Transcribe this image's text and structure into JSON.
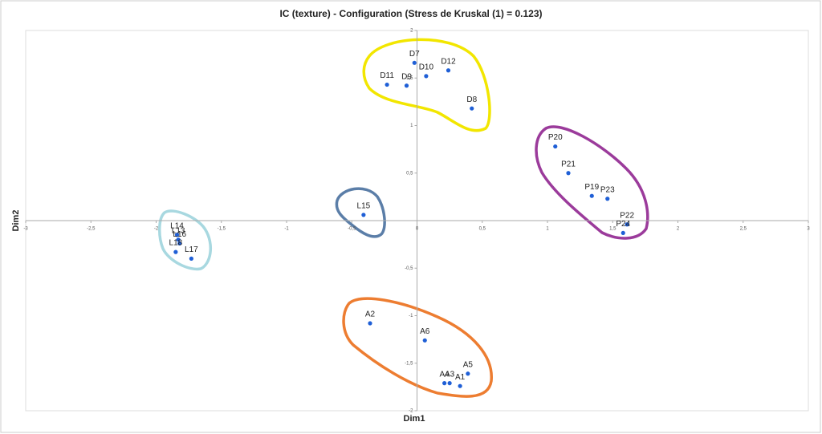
{
  "chart_data": {
    "type": "scatter",
    "title": "IC (texture) - Configuration (Stress de Kruskal (1) = 0.123)",
    "x_label": "Dim1",
    "y_label": "Dim2",
    "point_labels": [
      "D7",
      "D10",
      "D12",
      "D11",
      "D9",
      "D8",
      "P20",
      "P21",
      "P19",
      "P23",
      "P22",
      "P24",
      "L15",
      "L14",
      "L13",
      "L16",
      "L18",
      "L17",
      "A2",
      "A6",
      "A5",
      "A4",
      "A3",
      "A1"
    ],
    "x": [
      -0.02,
      0.07,
      0.24,
      -0.23,
      -0.08,
      0.42,
      1.06,
      1.16,
      1.34,
      1.46,
      1.61,
      1.58,
      -0.41,
      -1.84,
      -1.83,
      -1.82,
      -1.85,
      -1.73,
      -0.36,
      0.06,
      0.39,
      0.21,
      0.25,
      0.33
    ],
    "values": [
      1.66,
      1.52,
      1.58,
      1.43,
      1.42,
      1.18,
      0.78,
      0.5,
      0.26,
      0.23,
      -0.04,
      -0.13,
      0.06,
      -0.15,
      -0.2,
      -0.24,
      -0.33,
      -0.4,
      -1.08,
      -1.26,
      -1.61,
      -1.71,
      -1.71,
      -1.74
    ],
    "color": "#1f5fd6",
    "xlim": [
      -3,
      3
    ],
    "ylim": [
      -2,
      2
    ],
    "xticks": [
      -3,
      {
        "value": -2.5,
        "label": "-2,5"
      },
      -2,
      {
        "value": -1.5,
        "label": "-1,5"
      },
      -1,
      {
        "value": -0.5,
        "label": "-0,5"
      },
      0,
      {
        "value": 0.5,
        "label": "0,5"
      },
      1,
      {
        "value": 1.5,
        "label": "1,5"
      },
      2,
      {
        "value": 2.5,
        "label": "2,5"
      },
      3
    ],
    "yticks": [
      -2,
      {
        "value": -1.5,
        "label": "-1,5"
      },
      -1,
      {
        "value": -0.5,
        "label": "-0,5"
      },
      {
        "value": 0.5,
        "label": "0,5"
      },
      1,
      {
        "value": 1.5,
        "label": "1,5"
      },
      2
    ]
  }
}
